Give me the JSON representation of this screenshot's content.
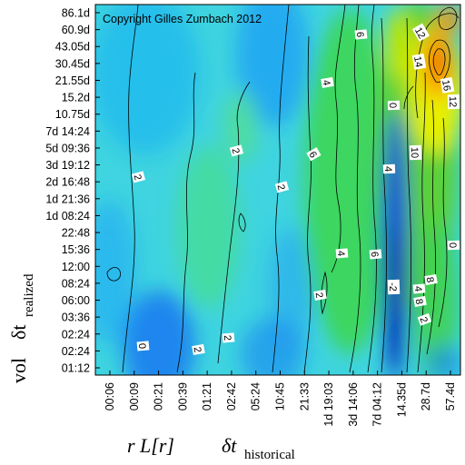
{
  "chart_data": {
    "type": "heatmap",
    "title": "",
    "copyright": "Copyright Gilles Zumbach 2012",
    "xlabel": {
      "main": "r L[r]",
      "delta": "δt",
      "subscript": "historical"
    },
    "ylabel": {
      "main": "vol",
      "delta": "δt",
      "subscript": "realized"
    },
    "x_ticks": [
      "00:06",
      "00:09",
      "00:21",
      "00:39",
      "01:21",
      "02:42",
      "05:24",
      "10:45",
      "21:33",
      "1d 19:03",
      "3d 14:06",
      "7d 04:12",
      "14.35d",
      "28.7d",
      "57.4d"
    ],
    "y_ticks": [
      "86.1d",
      "60.9d",
      "43.05d",
      "30.45d",
      "21.55d",
      "15.2d",
      "10.75d",
      "7d 14:24",
      "5d 09:36",
      "3d 19:12",
      "2d 16:48",
      "1d 21:36",
      "1d 08:24",
      "22:48",
      "15:36",
      "12:00",
      "08:24",
      "06:00",
      "03:36",
      "02:24",
      "02:24",
      "01:12"
    ],
    "contour_labels": [
      "0",
      "2",
      "2",
      "2",
      "2",
      "2",
      "2",
      "2",
      "4",
      "4",
      "4",
      "4",
      "6",
      "6",
      "6",
      "8",
      "8",
      "10",
      "10",
      "12",
      "12",
      "14",
      "16",
      "-2",
      "0"
    ],
    "colorscale": [
      "#0000a0",
      "#0050ff",
      "#00a8ff",
      "#40e0d0",
      "#2ecc71",
      "#7ed321",
      "#f5f500",
      "#ff8c00",
      "#e01010"
    ]
  }
}
